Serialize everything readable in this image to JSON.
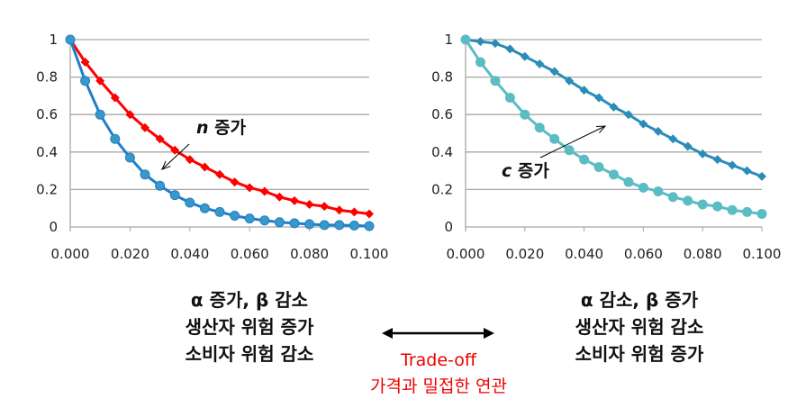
{
  "chart_data": [
    {
      "type": "line",
      "title": "",
      "xlabel": "",
      "ylabel": "",
      "xlim": [
        0,
        0.1
      ],
      "ylim": [
        0,
        1
      ],
      "grid": true,
      "xticks": [
        "0.000",
        "0.020",
        "0.040",
        "0.060",
        "0.080",
        "0.100"
      ],
      "yticks": [
        "0",
        "0.2",
        "0.4",
        "0.6",
        "0.8",
        "1"
      ],
      "x": [
        0,
        0.005,
        0.01,
        0.015,
        0.02,
        0.025,
        0.03,
        0.035,
        0.04,
        0.045,
        0.05,
        0.055,
        0.06,
        0.065,
        0.07,
        0.075,
        0.08,
        0.085,
        0.09,
        0.095,
        0.1
      ],
      "series": [
        {
          "name": "red",
          "color": "#ff0000",
          "marker": "diamond",
          "values": [
            1,
            0.88,
            0.78,
            0.69,
            0.6,
            0.53,
            0.47,
            0.41,
            0.36,
            0.32,
            0.28,
            0.24,
            0.21,
            0.19,
            0.16,
            0.14,
            0.12,
            0.11,
            0.09,
            0.08,
            0.07
          ]
        },
        {
          "name": "blue",
          "color": "#1f7fc8",
          "marker": "circle",
          "markerColor": "#3a98c8",
          "values": [
            1,
            0.78,
            0.6,
            0.47,
            0.37,
            0.28,
            0.22,
            0.17,
            0.13,
            0.1,
            0.08,
            0.06,
            0.045,
            0.035,
            0.025,
            0.02,
            0.015,
            0.01,
            0.01,
            0.008,
            0.005
          ]
        }
      ],
      "annotation": {
        "var": "n",
        "text": "증가"
      }
    },
    {
      "type": "line",
      "title": "",
      "xlabel": "",
      "ylabel": "",
      "xlim": [
        0,
        0.1
      ],
      "ylim": [
        0,
        1
      ],
      "grid": true,
      "xticks": [
        "0.000",
        "0.020",
        "0.040",
        "0.060",
        "0.080",
        "0.100"
      ],
      "yticks": [
        "0",
        "0.2",
        "0.4",
        "0.6",
        "0.8",
        "1"
      ],
      "x": [
        0,
        0.005,
        0.01,
        0.015,
        0.02,
        0.025,
        0.03,
        0.035,
        0.04,
        0.045,
        0.05,
        0.055,
        0.06,
        0.065,
        0.07,
        0.075,
        0.08,
        0.085,
        0.09,
        0.095,
        0.1
      ],
      "series": [
        {
          "name": "dark-teal",
          "color": "#2a8cb8",
          "marker": "diamond",
          "values": [
            1,
            0.99,
            0.98,
            0.95,
            0.91,
            0.87,
            0.83,
            0.78,
            0.73,
            0.69,
            0.64,
            0.6,
            0.55,
            0.51,
            0.47,
            0.43,
            0.39,
            0.36,
            0.33,
            0.3,
            0.27
          ]
        },
        {
          "name": "light-teal",
          "color": "#5bbcc4",
          "marker": "circle",
          "values": [
            1,
            0.88,
            0.78,
            0.69,
            0.6,
            0.53,
            0.47,
            0.41,
            0.36,
            0.32,
            0.28,
            0.24,
            0.21,
            0.19,
            0.16,
            0.14,
            0.12,
            0.11,
            0.09,
            0.08,
            0.07
          ]
        }
      ],
      "annotation": {
        "var": "c",
        "text": "증가"
      }
    }
  ],
  "left_block": [
    "α 증가, β 감소",
    "생산자 위험 증가",
    "소비자 위험 감소"
  ],
  "right_block": [
    "α 감소, β 증가",
    "생산자 위험 감소",
    "소비자 위험 증가"
  ],
  "center": {
    "line1": "Trade-off",
    "line2": "가격과 밀접한 연관"
  }
}
